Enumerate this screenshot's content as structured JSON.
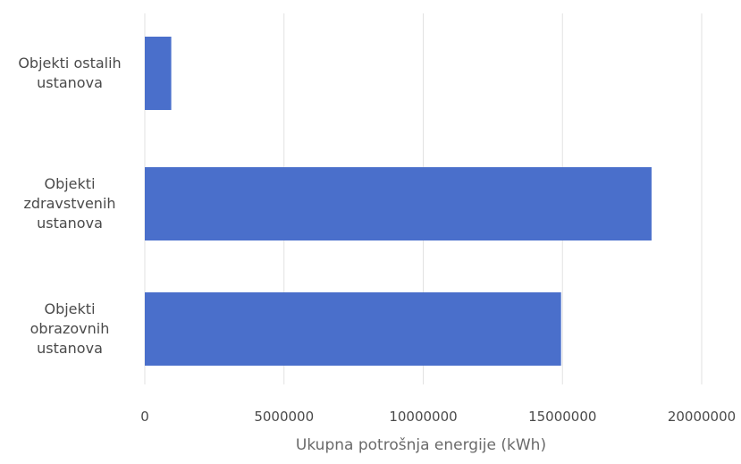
{
  "chart_data": {
    "type": "bar",
    "orientation": "horizontal",
    "categories": [
      [
        "Objekti ostalih",
        "ustanova"
      ],
      [
        "Objekti",
        "zdravstvenih",
        "ustanova"
      ],
      [
        "Objekti",
        "obrazovnih",
        "ustanova"
      ]
    ],
    "values": [
      950000,
      18200000,
      14950000
    ],
    "xlabel": "Ukupna potrošnja energije (kWh)",
    "ylabel": "",
    "xlim": [
      0,
      20000000
    ],
    "xticks": [
      "0",
      "5000000",
      "10000000",
      "15000000",
      "20000000"
    ],
    "grid": "vertical",
    "colors": {
      "bar": "#4a6fcb",
      "grid": "#e2e2e2",
      "text": "#4a4a4a"
    }
  }
}
